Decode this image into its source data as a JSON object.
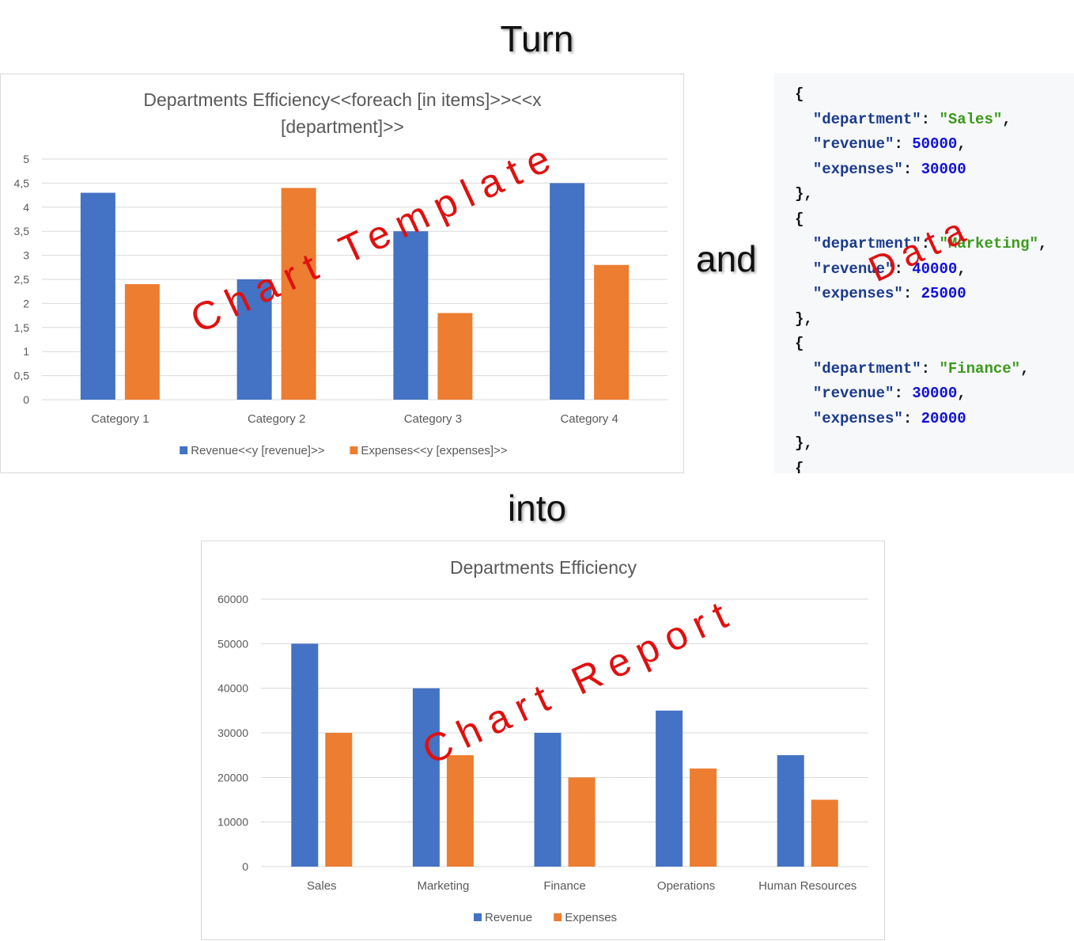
{
  "captions": {
    "turn": "Turn",
    "and": "and",
    "into": "into"
  },
  "watermarks": {
    "template": "Chart Template",
    "data": "Data",
    "report": "Chart Report"
  },
  "colors": {
    "revenue": "#4472c4",
    "expenses": "#ed7d31",
    "watermark": "#e01010"
  },
  "code_sample": [
    [
      [
        "p",
        "{"
      ]
    ],
    [
      [
        "p",
        "  "
      ],
      [
        "k",
        "\"department\""
      ],
      [
        "p",
        ": "
      ],
      [
        "s",
        "\"Sales\""
      ],
      [
        "p",
        ","
      ]
    ],
    [
      [
        "p",
        "  "
      ],
      [
        "k",
        "\"revenue\""
      ],
      [
        "p",
        ": "
      ],
      [
        "n",
        "50000"
      ],
      [
        "p",
        ","
      ]
    ],
    [
      [
        "p",
        "  "
      ],
      [
        "k",
        "\"expenses\""
      ],
      [
        "p",
        ": "
      ],
      [
        "n",
        "30000"
      ]
    ],
    [
      [
        "p",
        "},"
      ]
    ],
    [
      [
        "p",
        "{"
      ]
    ],
    [
      [
        "p",
        "  "
      ],
      [
        "k",
        "\"department\""
      ],
      [
        "p",
        ": "
      ],
      [
        "s",
        "\"Marketing\""
      ],
      [
        "p",
        ","
      ]
    ],
    [
      [
        "p",
        "  "
      ],
      [
        "k",
        "\"revenue\""
      ],
      [
        "p",
        ": "
      ],
      [
        "n",
        "40000"
      ],
      [
        "p",
        ","
      ]
    ],
    [
      [
        "p",
        "  "
      ],
      [
        "k",
        "\"expenses\""
      ],
      [
        "p",
        ": "
      ],
      [
        "n",
        "25000"
      ]
    ],
    [
      [
        "p",
        "},"
      ]
    ],
    [
      [
        "p",
        "{"
      ]
    ],
    [
      [
        "p",
        "  "
      ],
      [
        "k",
        "\"department\""
      ],
      [
        "p",
        ": "
      ],
      [
        "s",
        "\"Finance\""
      ],
      [
        "p",
        ","
      ]
    ],
    [
      [
        "p",
        "  "
      ],
      [
        "k",
        "\"revenue\""
      ],
      [
        "p",
        ": "
      ],
      [
        "n",
        "30000"
      ],
      [
        "p",
        ","
      ]
    ],
    [
      [
        "p",
        "  "
      ],
      [
        "k",
        "\"expenses\""
      ],
      [
        "p",
        ": "
      ],
      [
        "n",
        "20000"
      ]
    ],
    [
      [
        "p",
        "},"
      ]
    ],
    [
      [
        "p",
        "{"
      ]
    ]
  ],
  "chart_data": [
    {
      "type": "bar",
      "title": "Departments Efficiency<<foreach [in items]>><<x [department]>>",
      "title_lines": [
        "Departments Efficiency<<foreach [in items]>><<x",
        "[department]>>"
      ],
      "categories": [
        "Category 1",
        "Category 2",
        "Category 3",
        "Category 4"
      ],
      "series": [
        {
          "name": "Revenue<<y [revenue]>>",
          "values": [
            4.3,
            2.5,
            3.5,
            4.5
          ],
          "color": "#4472c4"
        },
        {
          "name": "Expenses<<y [expenses]>>",
          "values": [
            2.4,
            4.4,
            1.8,
            2.8
          ],
          "color": "#ed7d31"
        }
      ],
      "ylim": [
        0,
        5
      ],
      "yticks": [
        "0",
        "0,5",
        "1",
        "1,5",
        "2",
        "2,5",
        "3",
        "3,5",
        "4",
        "4,5",
        "5"
      ],
      "grid": true,
      "legend": "bottom"
    },
    {
      "type": "bar",
      "title": "Departments Efficiency",
      "title_lines": [
        "Departments Efficiency"
      ],
      "categories": [
        "Sales",
        "Marketing",
        "Finance",
        "Operations",
        "Human Resources"
      ],
      "series": [
        {
          "name": "Revenue",
          "values": [
            50000,
            40000,
            30000,
            35000,
            25000
          ],
          "color": "#4472c4"
        },
        {
          "name": "Expenses",
          "values": [
            30000,
            25000,
            20000,
            22000,
            15000
          ],
          "color": "#ed7d31"
        }
      ],
      "ylim": [
        0,
        60000
      ],
      "yticks": [
        "0",
        "10000",
        "20000",
        "30000",
        "40000",
        "50000",
        "60000"
      ],
      "grid": true,
      "legend": "bottom"
    }
  ]
}
